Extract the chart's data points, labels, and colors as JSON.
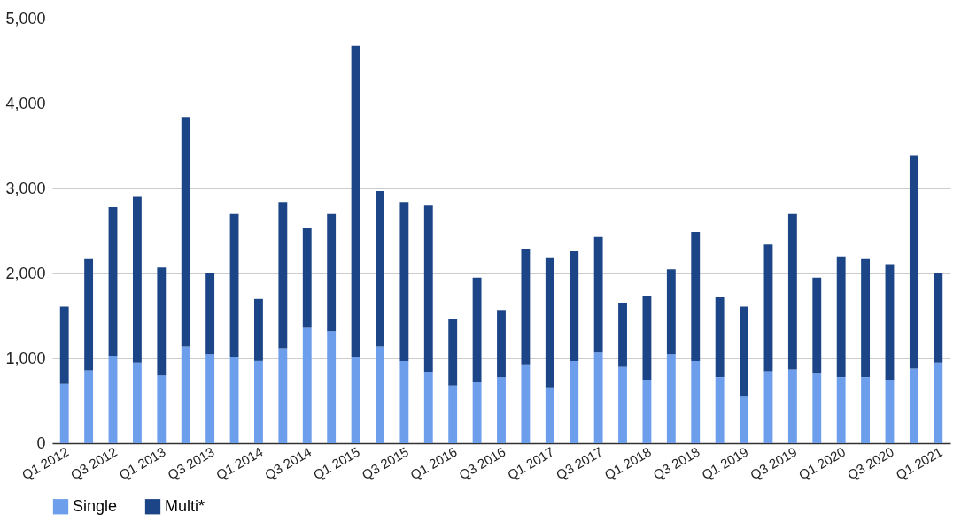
{
  "chart_data": {
    "type": "bar",
    "stacked": true,
    "categories": [
      "Q1 2012",
      null,
      "Q3 2012",
      null,
      "Q1 2013",
      null,
      "Q3 2013",
      null,
      "Q1 2014",
      null,
      "Q3 2014",
      null,
      "Q1 2015",
      null,
      "Q3 2015",
      null,
      "Q1 2016",
      null,
      "Q3 2016",
      null,
      "Q1 2017",
      null,
      "Q3 2017",
      null,
      "Q1 2018",
      null,
      "Q3 2018",
      null,
      "Q1 2019",
      null,
      "Q3 2019",
      null,
      "Q1 2020",
      null,
      "Q3 2020",
      null,
      "Q1 2021"
    ],
    "series": [
      {
        "name": "Single",
        "color": "#6d9eeb",
        "values": [
          700,
          860,
          1030,
          950,
          800,
          1140,
          1050,
          1010,
          970,
          1120,
          1360,
          1320,
          1010,
          1140,
          970,
          840,
          680,
          720,
          780,
          930,
          660,
          970,
          1070,
          900,
          740,
          1050,
          970,
          780,
          550,
          850,
          870,
          820,
          780,
          780,
          740,
          880,
          950
        ]
      },
      {
        "name": "Multi*",
        "color": "#1c4587",
        "values": [
          910,
          1310,
          1750,
          1950,
          1270,
          2700,
          960,
          1690,
          730,
          1720,
          1170,
          1380,
          3670,
          1830,
          1870,
          1960,
          780,
          1230,
          790,
          1350,
          1520,
          1290,
          1360,
          750,
          1000,
          1000,
          1520,
          940,
          1060,
          1490,
          1830,
          1130,
          1420,
          1390,
          1370,
          2510,
          1060
        ]
      }
    ],
    "ylim": [
      0,
      5000
    ],
    "yticks": [
      {
        "value": 0,
        "label": "0"
      },
      {
        "value": 1000,
        "label": "1,000"
      },
      {
        "value": 2000,
        "label": "2,000"
      },
      {
        "value": 3000,
        "label": "3,000"
      },
      {
        "value": 4000,
        "label": "4,000"
      },
      {
        "value": 5000,
        "label": "5,000"
      }
    ],
    "grid": "y",
    "legend": "bottom"
  }
}
